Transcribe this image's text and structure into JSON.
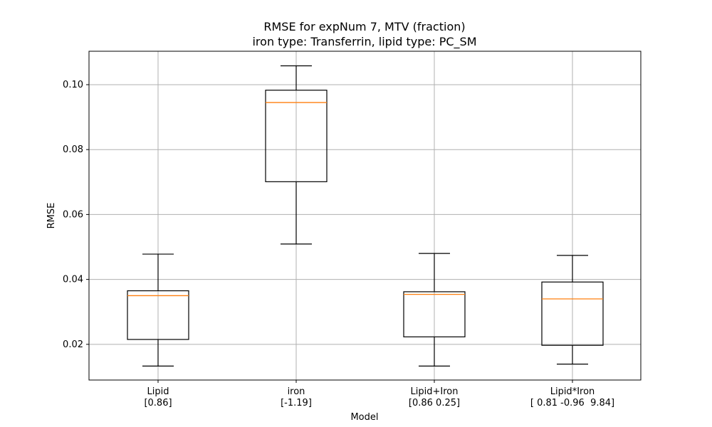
{
  "chart_data": {
    "type": "box",
    "title_line1": "RMSE for expNum 7, MTV (fraction)",
    "title_line2": "iron type: Transferrin, lipid type: PC_SM",
    "xlabel": "Model",
    "ylabel": "RMSE",
    "ylim": [
      0.009,
      0.1103
    ],
    "yticks": [
      0.02,
      0.04,
      0.06,
      0.08,
      0.1
    ],
    "ytick_labels": [
      "0.02",
      "0.04",
      "0.06",
      "0.08",
      "0.10"
    ],
    "grid": true,
    "categories": [
      {
        "name": "Lipid",
        "sub": "[0.86]"
      },
      {
        "name": "iron",
        "sub": "[-1.19]"
      },
      {
        "name": "Lipid+Iron",
        "sub": "[0.86 0.25]"
      },
      {
        "name": "Lipid*Iron",
        "sub": "[ 0.81 -0.96  9.84]"
      }
    ],
    "boxes": [
      {
        "whisker_low": 0.0133,
        "q1": 0.0215,
        "median": 0.035,
        "q3": 0.0365,
        "whisker_high": 0.0478
      },
      {
        "whisker_low": 0.0509,
        "q1": 0.0701,
        "median": 0.0945,
        "q3": 0.0983,
        "whisker_high": 0.1058
      },
      {
        "whisker_low": 0.0133,
        "q1": 0.0223,
        "median": 0.0354,
        "q3": 0.0362,
        "whisker_high": 0.048
      },
      {
        "whisker_low": 0.0139,
        "q1": 0.0197,
        "median": 0.034,
        "q3": 0.0392,
        "whisker_high": 0.0474
      }
    ],
    "colors": {
      "box": "#000000",
      "median": "#ff7f0e",
      "grid": "#b0b0b0"
    }
  }
}
